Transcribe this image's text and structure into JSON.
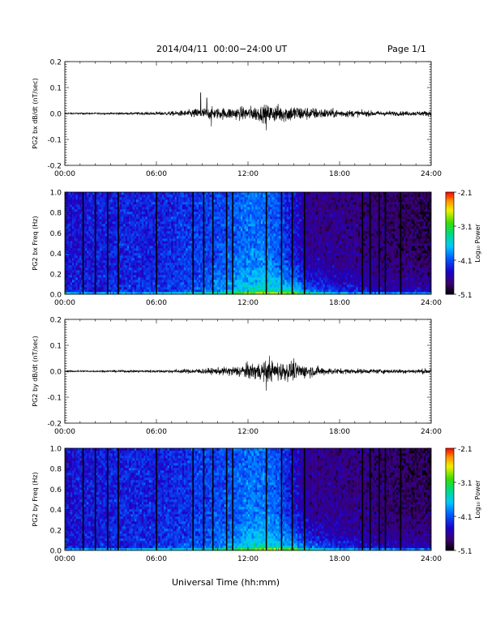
{
  "header": {
    "title": "2014/04/11  00:00−24:00 UT",
    "page": "Page 1/1"
  },
  "x_axis_label": "Universal Time (hh:mm)",
  "chart_data": [
    {
      "type": "line",
      "ylabel": "PG2 bx dB/dt (nT/sec)",
      "xlim": [
        0,
        24
      ],
      "ylim": [
        -0.2,
        0.2
      ],
      "xticks": [
        "00:00",
        "06:00",
        "12:00",
        "18:00",
        "24:00"
      ],
      "yticks": [
        "-0.2",
        "-0.1",
        "0.0",
        "0.1",
        "0.2"
      ],
      "envelope": {
        "hours": [
          0,
          2,
          4,
          6,
          7,
          8,
          8.8,
          9.5,
          10,
          11,
          12,
          13,
          14,
          15,
          16,
          17,
          18,
          19,
          20,
          21,
          22,
          23,
          24
        ],
        "amplitude": [
          0.003,
          0.003,
          0.004,
          0.006,
          0.008,
          0.012,
          0.02,
          0.022,
          0.02,
          0.022,
          0.025,
          0.03,
          0.032,
          0.03,
          0.022,
          0.018,
          0.014,
          0.012,
          0.01,
          0.009,
          0.008,
          0.008,
          0.01
        ]
      },
      "spikes": [
        {
          "hour": 8.9,
          "value": 0.08
        },
        {
          "hour": 9.3,
          "value": 0.06
        },
        {
          "hour": 9.6,
          "value": -0.05
        },
        {
          "hour": 13.2,
          "value": -0.065
        }
      ]
    },
    {
      "type": "heatmap",
      "ylabel": "PG2 bx Freq (Hz)",
      "xlim": [
        0,
        24
      ],
      "ylim": [
        0,
        1.0
      ],
      "xticks": [
        "00:00",
        "06:00",
        "12:00",
        "18:00",
        "24:00"
      ],
      "yticks": [
        "0.0",
        "0.2",
        "0.4",
        "0.6",
        "0.8",
        "1.0"
      ],
      "colorbar": {
        "label": "Log₁₀ Power",
        "ticks": [
          "-2.1",
          "-3.1",
          "-4.1",
          "-5.1"
        ],
        "range": [
          -5.1,
          -2.1
        ]
      },
      "gap_hours": [
        1.2,
        2.0,
        2.8,
        3.5,
        6.0,
        8.4,
        9.1,
        9.7,
        10.6,
        11.0,
        13.2,
        14.2,
        14.9,
        15.7,
        19.5,
        20.0,
        20.6,
        21.0,
        22.0
      ],
      "intensity_profile": {
        "hours": [
          0,
          3,
          6,
          9,
          11,
          12,
          13,
          14,
          15,
          16,
          18,
          21,
          24
        ],
        "low_freq_power": [
          -4.3,
          -4.3,
          -4.2,
          -4.0,
          -3.6,
          -3.4,
          -3.2,
          -3.3,
          -3.4,
          -3.8,
          -4.2,
          -4.4,
          -4.4
        ],
        "high_freq_power": [
          -4.4,
          -4.3,
          -4.3,
          -4.2,
          -4.1,
          -4.0,
          -4.0,
          -4.1,
          -4.4,
          -4.7,
          -4.7,
          -4.8,
          -4.9
        ]
      }
    },
    {
      "type": "line",
      "ylabel": "PG2 by dB/dt (nT/sec)",
      "xlim": [
        0,
        24
      ],
      "ylim": [
        -0.2,
        0.2
      ],
      "xticks": [
        "00:00",
        "06:00",
        "12:00",
        "18:00",
        "24:00"
      ],
      "yticks": [
        "-0.2",
        "-0.1",
        "0.0",
        "0.1",
        "0.2"
      ],
      "envelope": {
        "hours": [
          0,
          2,
          4,
          6,
          7,
          8,
          9,
          10,
          11,
          12,
          13,
          14,
          15,
          16,
          17,
          18,
          19,
          20,
          21,
          22,
          23,
          24
        ],
        "amplitude": [
          0.003,
          0.003,
          0.004,
          0.005,
          0.006,
          0.008,
          0.01,
          0.012,
          0.018,
          0.028,
          0.035,
          0.036,
          0.032,
          0.022,
          0.014,
          0.01,
          0.009,
          0.008,
          0.008,
          0.008,
          0.008,
          0.01
        ]
      },
      "spikes": [
        {
          "hour": 13.4,
          "value": 0.06
        },
        {
          "hour": 13.2,
          "value": -0.075
        },
        {
          "hour": 15.0,
          "value": 0.05
        }
      ]
    },
    {
      "type": "heatmap",
      "ylabel": "PG2 by Freq (Hz)",
      "xlim": [
        0,
        24
      ],
      "ylim": [
        0,
        1.0
      ],
      "xticks": [
        "00:00",
        "06:00",
        "12:00",
        "18:00",
        "24:00"
      ],
      "yticks": [
        "0.0",
        "0.2",
        "0.4",
        "0.6",
        "0.8",
        "1.0"
      ],
      "colorbar": {
        "label": "Log₁₀ Power",
        "ticks": [
          "-2.1",
          "-3.1",
          "-4.1",
          "-5.1"
        ],
        "range": [
          -5.1,
          -2.1
        ]
      },
      "gap_hours": [
        1.2,
        2.0,
        2.8,
        3.5,
        6.0,
        8.4,
        9.1,
        9.7,
        10.6,
        11.0,
        13.2,
        14.2,
        14.9,
        15.7,
        19.5,
        20.0,
        20.6,
        21.0,
        22.0
      ],
      "intensity_profile": {
        "hours": [
          0,
          3,
          6,
          9,
          11,
          12,
          13,
          14,
          15,
          16,
          18,
          21,
          24
        ],
        "low_freq_power": [
          -4.3,
          -4.3,
          -4.2,
          -4.0,
          -3.7,
          -3.5,
          -3.3,
          -3.4,
          -3.5,
          -3.9,
          -4.2,
          -4.4,
          -4.4
        ],
        "high_freq_power": [
          -4.4,
          -4.3,
          -4.3,
          -4.2,
          -4.1,
          -4.0,
          -4.0,
          -4.1,
          -4.4,
          -4.7,
          -4.7,
          -4.8,
          -4.9
        ]
      }
    }
  ]
}
